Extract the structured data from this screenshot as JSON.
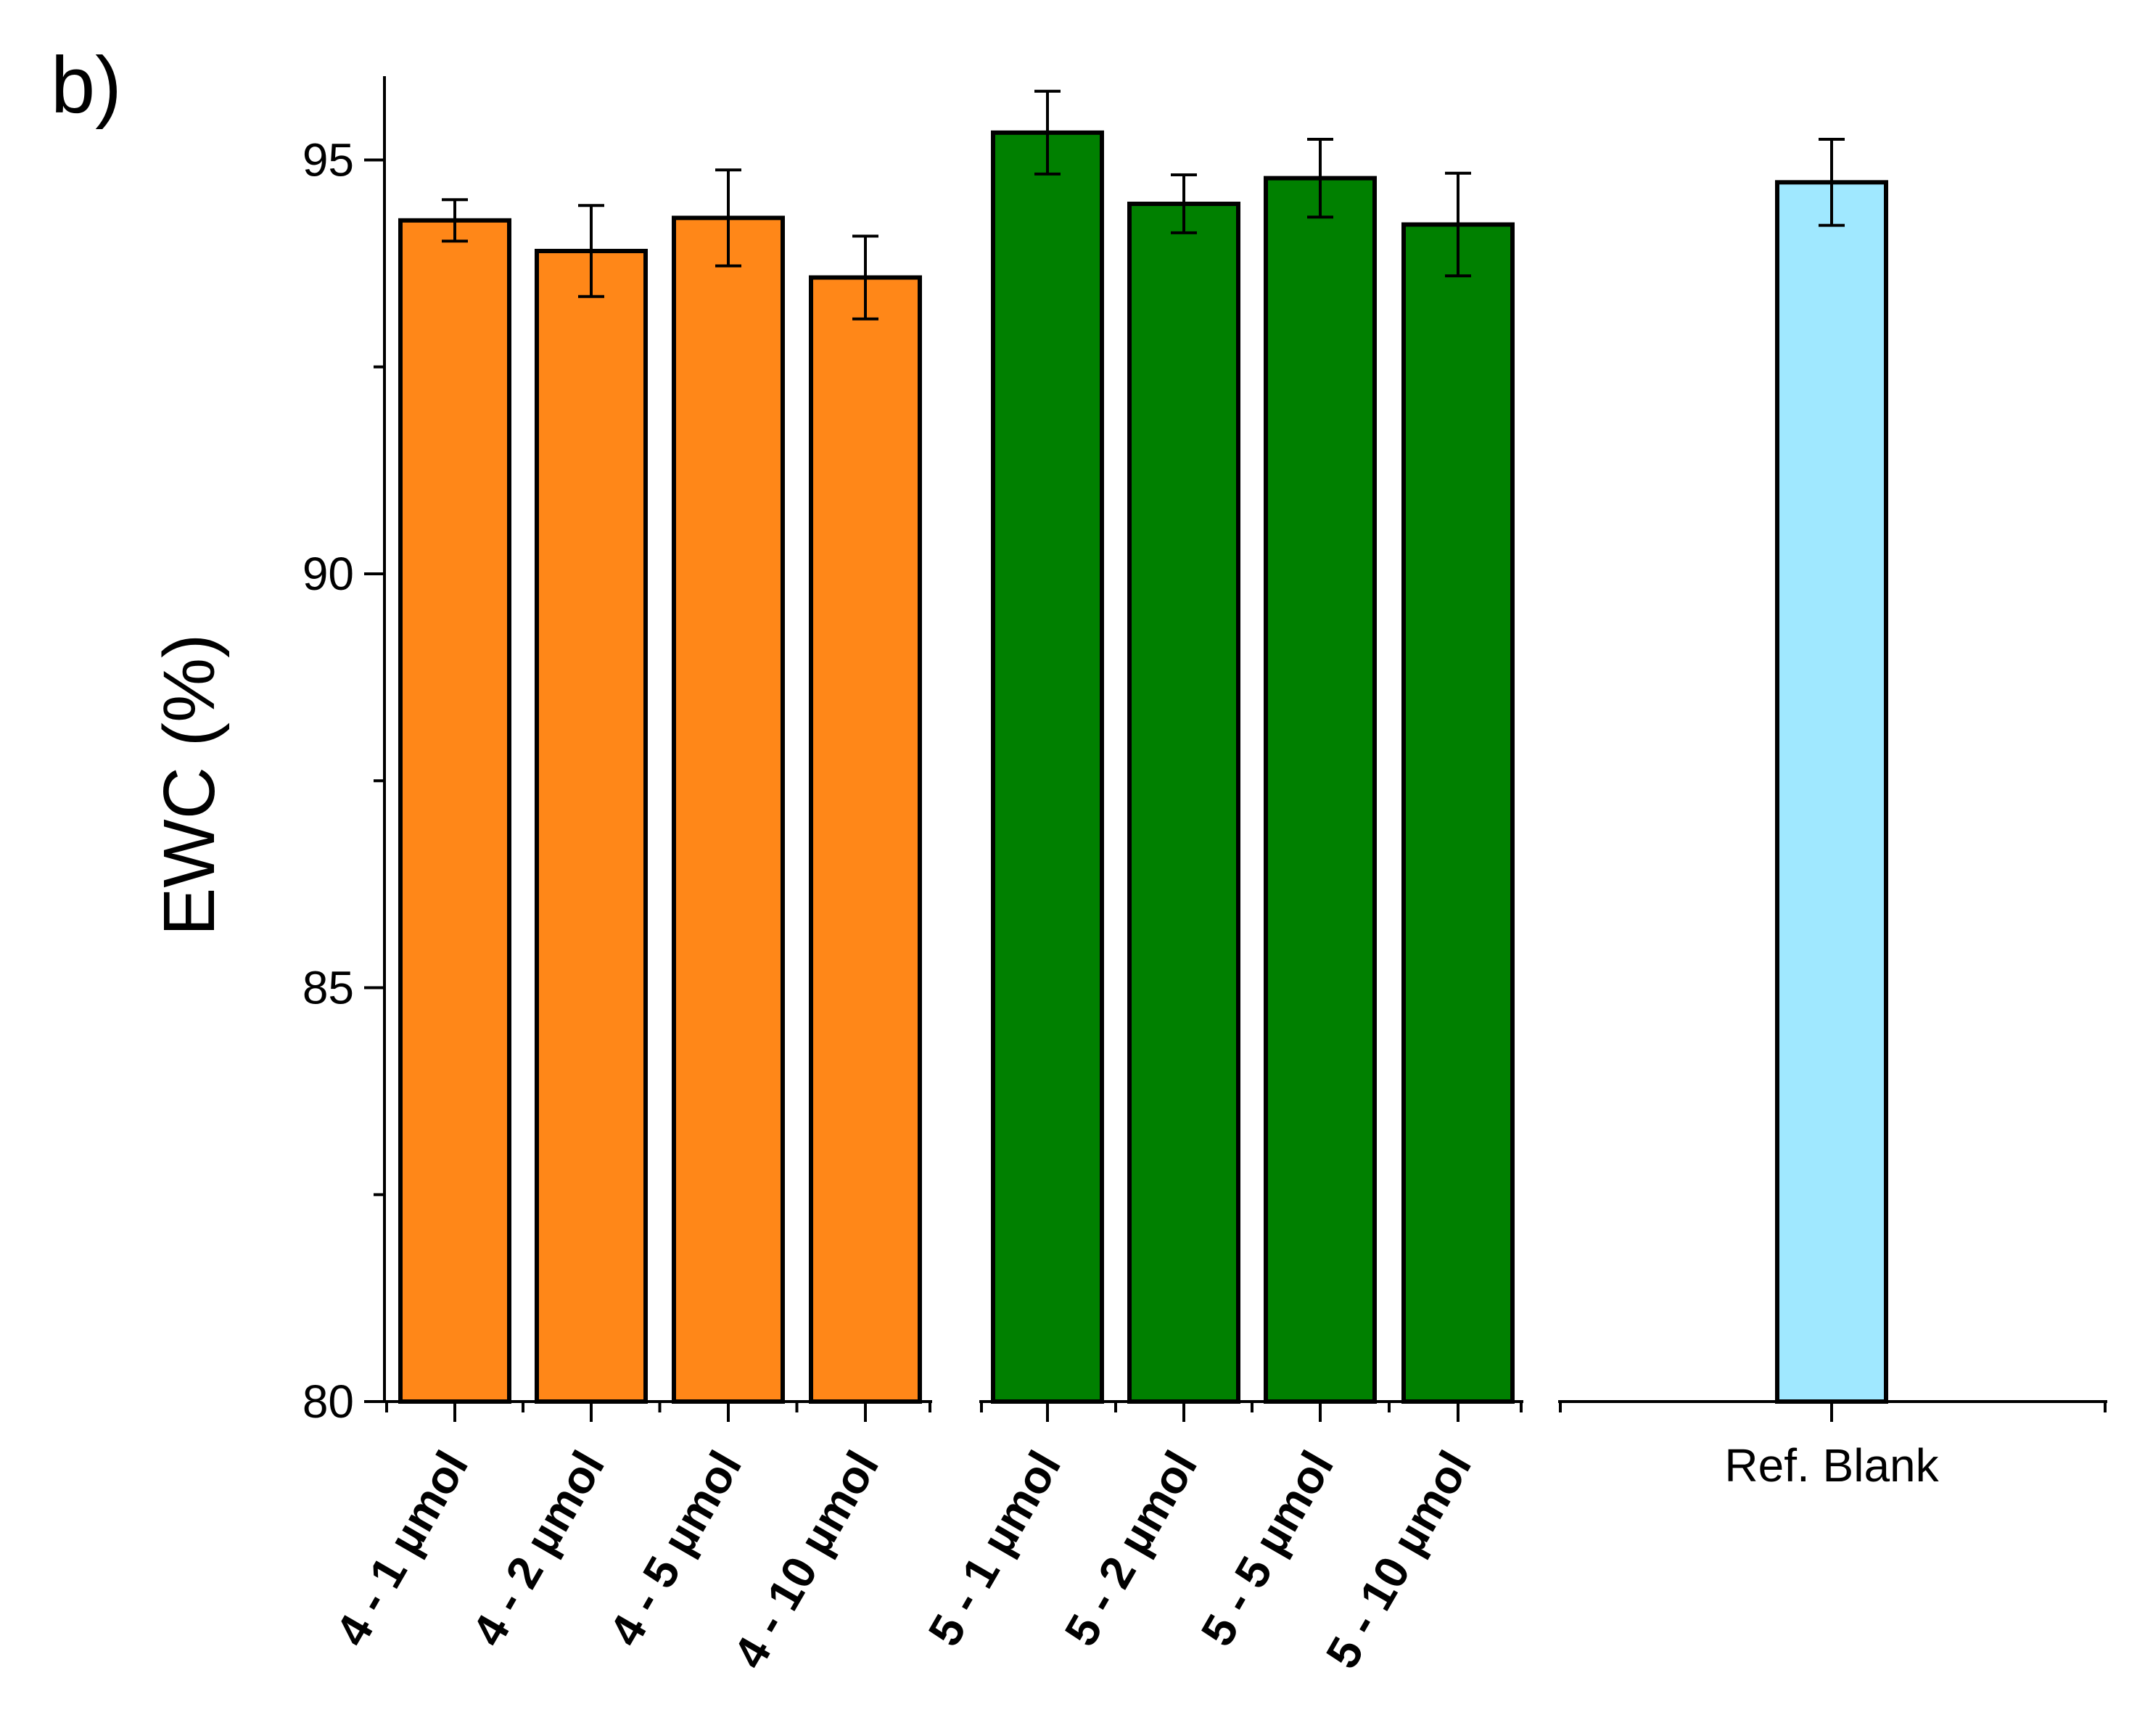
{
  "panel_label": "b)",
  "chart_data": {
    "type": "bar",
    "title": "",
    "xlabel": "",
    "ylabel": "EWC (%)",
    "ylim": [
      80,
      96
    ],
    "yticks": [
      "80",
      "85",
      "90",
      "95"
    ],
    "grid": false,
    "legend": "none",
    "groups": [
      {
        "color": "#FF8718",
        "bars": [
          {
            "label": "4 - 1 µmol",
            "value": 94.27,
            "error": 0.25
          },
          {
            "label": "4 - 2 µmol",
            "value": 93.9,
            "error": 0.55
          },
          {
            "label": "4 - 5 µmol",
            "value": 94.3,
            "error": 0.58
          },
          {
            "label": "4 - 10 µmol",
            "value": 93.58,
            "error": 0.5
          }
        ]
      },
      {
        "color": "#008000",
        "bars": [
          {
            "label": "5 - 1 µmol",
            "value": 95.33,
            "error": 0.5
          },
          {
            "label": "5 - 2 µmol",
            "value": 94.47,
            "error": 0.35
          },
          {
            "label": "5 - 5 µmol",
            "value": 94.78,
            "error": 0.47
          },
          {
            "label": "5 - 10 µmol",
            "value": 94.22,
            "error": 0.62
          }
        ]
      },
      {
        "color": "#A0E8FF",
        "bars": [
          {
            "label": "Ref. Blank",
            "value": 94.73,
            "error": 0.52
          }
        ]
      }
    ]
  }
}
